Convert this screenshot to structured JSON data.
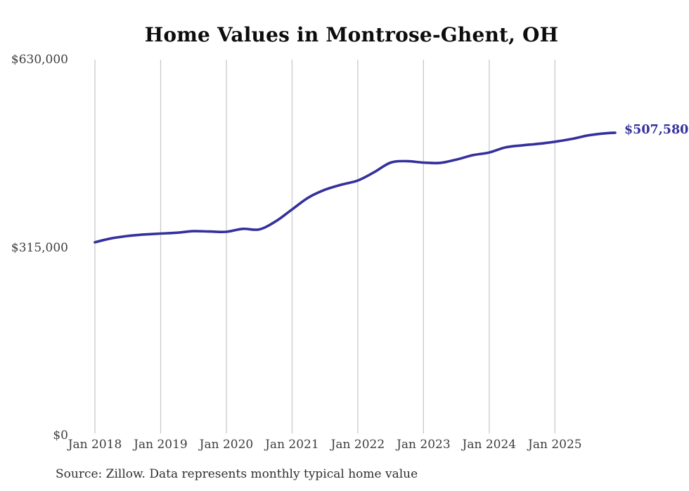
{
  "chart_data": {
    "type": "line",
    "title": "Home Values in Montrose-Ghent, OH",
    "source": "Source: Zillow. Data represents monthly typical home value",
    "end_label": "$507,580",
    "last_value": 507580,
    "line_color": "#34309c",
    "grid_color": "#c9c9c9",
    "grid": "vertical-only",
    "legend": "none",
    "xlabel": "",
    "ylabel": "",
    "ylim": [
      0,
      630000
    ],
    "y_ticks": [
      {
        "value": 0,
        "label": "$0"
      },
      {
        "value": 315000,
        "label": "$315,000"
      },
      {
        "value": 630000,
        "label": "$630,000"
      }
    ],
    "x_ticks": [
      {
        "date": "2018-01",
        "label": "Jan 2018"
      },
      {
        "date": "2019-01",
        "label": "Jan 2019"
      },
      {
        "date": "2020-01",
        "label": "Jan 2020"
      },
      {
        "date": "2021-01",
        "label": "Jan 2021"
      },
      {
        "date": "2022-01",
        "label": "Jan 2022"
      },
      {
        "date": "2023-01",
        "label": "Jan 2023"
      },
      {
        "date": "2024-01",
        "label": "Jan 2024"
      },
      {
        "date": "2025-01",
        "label": "Jan 2025"
      }
    ],
    "series": [
      {
        "name": "Typical home value",
        "points": [
          [
            "2018-01",
            324000
          ],
          [
            "2018-04",
            330500
          ],
          [
            "2018-07",
            334500
          ],
          [
            "2018-10",
            337000
          ],
          [
            "2019-01",
            338500
          ],
          [
            "2019-04",
            340000
          ],
          [
            "2019-07",
            342500
          ],
          [
            "2019-10",
            342000
          ],
          [
            "2020-01",
            341500
          ],
          [
            "2020-04",
            346500
          ],
          [
            "2020-07",
            345500
          ],
          [
            "2020-10",
            359000
          ],
          [
            "2021-01",
            379000
          ],
          [
            "2021-04",
            399000
          ],
          [
            "2021-07",
            412000
          ],
          [
            "2021-10",
            420500
          ],
          [
            "2022-01",
            427500
          ],
          [
            "2022-04",
            441500
          ],
          [
            "2022-07",
            457500
          ],
          [
            "2022-10",
            460000
          ],
          [
            "2023-01",
            457500
          ],
          [
            "2023-04",
            457000
          ],
          [
            "2023-07",
            462500
          ],
          [
            "2023-10",
            470000
          ],
          [
            "2024-01",
            474500
          ],
          [
            "2024-04",
            483000
          ],
          [
            "2024-07",
            486500
          ],
          [
            "2024-10",
            489000
          ],
          [
            "2025-01",
            492500
          ],
          [
            "2025-04",
            497000
          ],
          [
            "2025-07",
            503000
          ],
          [
            "2025-10",
            506500
          ],
          [
            "2025-12",
            507580
          ]
        ]
      }
    ]
  }
}
